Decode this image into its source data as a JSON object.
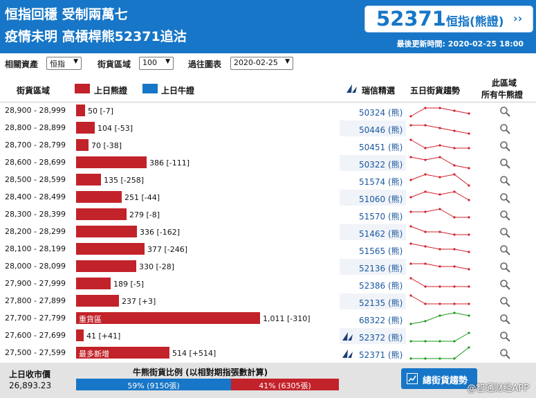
{
  "header": {
    "headline_1": "恒指回穩 受制兩萬七",
    "headline_2": "疫情未明 高槓桿熊52371追沽",
    "code": "52371",
    "code_name": "恒指(熊證)",
    "code_arrow": "››",
    "updated": "最後更新時間: 2020-02-25 18:00"
  },
  "filters": {
    "asset_label": "相關資產",
    "asset_value": "恒指",
    "zone_label": "街貨區域",
    "zone_value": "100",
    "past_label": "過往圖表",
    "past_value": "2020-02-25"
  },
  "table_header": {
    "range": "街貨區域",
    "bear_legend": "上日熊證",
    "bull_legend": "上日牛證",
    "pick": "瑞信精選",
    "trend": "五日街貨趨勢",
    "all_1": "此區域",
    "all_2": "所有牛熊證"
  },
  "colors": {
    "bear": "#c2222a",
    "bull": "#1776c7",
    "trend_bear": "#d0202a",
    "trend_bull": "#1a9a1a"
  },
  "rows": [
    {
      "range": "28,900 - 28,999",
      "value": 50,
      "label": "50 [-7]",
      "warrant": "50324 (熊)",
      "bird": false,
      "trend": [
        4,
        1,
        1,
        2,
        3
      ],
      "type": "bear"
    },
    {
      "range": "28,800 - 28,899",
      "value": 104,
      "label": "104 [-53]",
      "warrant": "50446 (熊)",
      "bird": false,
      "trend": [
        1,
        1,
        2,
        3,
        4
      ],
      "type": "bear"
    },
    {
      "range": "28,700 - 28,799",
      "value": 70,
      "label": "70 [-38]",
      "warrant": "50451 (熊)",
      "bird": false,
      "trend": [
        0,
        3,
        2,
        3,
        3
      ],
      "type": "bear"
    },
    {
      "range": "28,600 - 28,699",
      "value": 386,
      "label": "386 [-111]",
      "warrant": "50322 (熊)",
      "bird": false,
      "trend": [
        0,
        1,
        0,
        3,
        4
      ],
      "type": "bear"
    },
    {
      "range": "28,500 - 28,599",
      "value": 135,
      "label": "135 [-258]",
      "warrant": "51574 (熊)",
      "bird": false,
      "trend": [
        2,
        0,
        1,
        0,
        4
      ],
      "type": "bear"
    },
    {
      "range": "28,400 - 28,499",
      "value": 251,
      "label": "251 [-44]",
      "warrant": "51060 (熊)",
      "bird": false,
      "trend": [
        2,
        0,
        1,
        0,
        3
      ],
      "type": "bear"
    },
    {
      "range": "28,300 - 28,399",
      "value": 279,
      "label": "279 [-8]",
      "warrant": "51570 (熊)",
      "bird": false,
      "trend": [
        1,
        1,
        0,
        3,
        3
      ],
      "type": "bear"
    },
    {
      "range": "28,200 - 28,299",
      "value": 336,
      "label": "336 [-162]",
      "warrant": "51462 (熊)",
      "bird": false,
      "trend": [
        0,
        2,
        2,
        3,
        3
      ],
      "type": "bear"
    },
    {
      "range": "28,100 - 28,199",
      "value": 377,
      "label": "377 [-246]",
      "warrant": "51565 (熊)",
      "bird": false,
      "trend": [
        0,
        1,
        2,
        2,
        3
      ],
      "type": "bear"
    },
    {
      "range": "28,000 - 28,099",
      "value": 330,
      "label": "330 [-28]",
      "warrant": "52136 (熊)",
      "bird": false,
      "trend": [
        1,
        1,
        2,
        2,
        3
      ],
      "type": "bear"
    },
    {
      "range": "27,900 - 27,999",
      "value": 189,
      "label": "189 [-5]",
      "warrant": "52386 (熊)",
      "bird": false,
      "trend": [
        0,
        3,
        3,
        3,
        3
      ],
      "type": "bear"
    },
    {
      "range": "27,800 - 27,899",
      "value": 237,
      "label": "237 [+3]",
      "warrant": "52135 (熊)",
      "bird": false,
      "trend": [
        0,
        3,
        3,
        3,
        3
      ],
      "type": "bear"
    },
    {
      "range": "27,700 - 27,799",
      "value": 1011,
      "label": "1,011 [-310]",
      "tag": "重貨區",
      "warrant": "68322 (熊)",
      "bird": false,
      "trend": [
        4,
        3,
        1,
        0,
        1
      ],
      "type": "bull"
    },
    {
      "range": "27,600 - 27,699",
      "value": 41,
      "label": "41 [+41]",
      "warrant": "52372 (熊)",
      "bird": true,
      "trend": [
        4,
        4,
        4,
        4,
        1
      ],
      "type": "bull"
    },
    {
      "range": "27,500 - 27,599",
      "value": 514,
      "label": "514 [+514]",
      "tag": "最多新增",
      "warrant": "52371 (熊)",
      "bird": true,
      "trend": [
        4,
        4,
        4,
        4,
        0
      ],
      "type": "bull"
    }
  ],
  "footer": {
    "close_label": "上日收市價",
    "close_value": "26,893.23",
    "ratio_title": "牛熊街貨比例 (以相對期指張數計算)",
    "bull_pct": 59,
    "bull_text": "59% (9150張)",
    "bear_text": "41% (6305張)",
    "button_label": "總街貨趨勢",
    "watermark": "@智通财经APP"
  }
}
